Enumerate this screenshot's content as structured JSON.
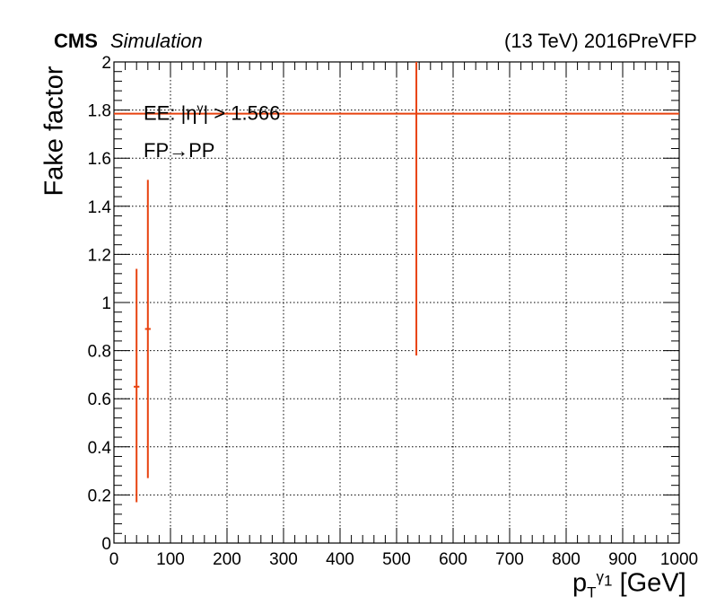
{
  "header": {
    "experiment": "CMS",
    "status": "Simulation",
    "energy_label": "(13 TeV) 2016PreVFP"
  },
  "annotations": {
    "region": "EE: |η",
    "region_sup": "γ",
    "region_cut": "| > 1.566",
    "transition": "FP→PP"
  },
  "chart_data": {
    "type": "scatter",
    "xlabel": "p",
    "xlabel_sub": "T",
    "xlabel_sup": "γ",
    "xlabel_sup_sub": "1",
    "xlabel_unit": "[GeV]",
    "ylabel": "Fake factor",
    "xlim": [
      0,
      1000
    ],
    "ylim": [
      0,
      2
    ],
    "x_ticks": [
      0,
      100,
      200,
      300,
      400,
      500,
      600,
      700,
      800,
      900,
      1000
    ],
    "y_ticks": [
      0,
      0.2,
      0.4,
      0.6,
      0.8,
      1,
      1.2,
      1.4,
      1.6,
      1.8,
      2
    ],
    "y_tick_labels": [
      "0",
      "0.2",
      "0.4",
      "0.6",
      "0.8",
      "1",
      "1.2",
      "1.4",
      "1.6",
      "1.8",
      "2"
    ],
    "grid": true,
    "color": "#e8420f",
    "points": [
      {
        "x": 40,
        "xlo": 35,
        "xhi": 45,
        "y": 0.65,
        "ylo": 0.17,
        "yhi": 1.14
      },
      {
        "x": 60,
        "xlo": 55,
        "xhi": 65,
        "y": 0.89,
        "ylo": 0.27,
        "yhi": 1.51
      },
      {
        "x": 535,
        "xlo": 0,
        "xhi": 1000,
        "y": 1.785,
        "ylo": 0.78,
        "yhi": 2.0
      }
    ]
  }
}
